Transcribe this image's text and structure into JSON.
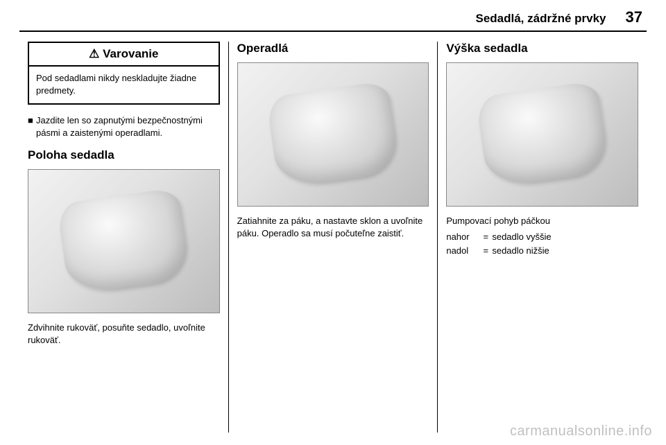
{
  "header": {
    "title": "Sedadlá, zádržné prvky",
    "page_number": "37"
  },
  "col1": {
    "warning": {
      "icon": "⚠",
      "title": "Varovanie",
      "body": "Pod sedadlami nikdy neskladujte žiadne predmety."
    },
    "bullet_marker": "■",
    "bullet_text": "Jazdite len so zapnutými bezpečnostnými pásmi a zaistenými operadlami.",
    "heading": "Poloha sedadla",
    "caption": "Zdvihnite rukoväť, posuňte sedadlo, uvoľnite rukoväť."
  },
  "col2": {
    "heading": "Operadlá",
    "caption": "Zatiahnite za páku, a nastavte sklon a uvoľnite páku. Operadlo sa musí počuteľne zaistiť."
  },
  "col3": {
    "heading": "Výška sedadla",
    "caption": "Pumpovací pohyb páčkou",
    "defs": [
      {
        "term": "nahor",
        "eq": "=",
        "val": "sedadlo vyššie"
      },
      {
        "term": "nadol",
        "eq": "=",
        "val": "sedadlo nižšie"
      }
    ]
  },
  "watermark": "carmanualsonline.info"
}
